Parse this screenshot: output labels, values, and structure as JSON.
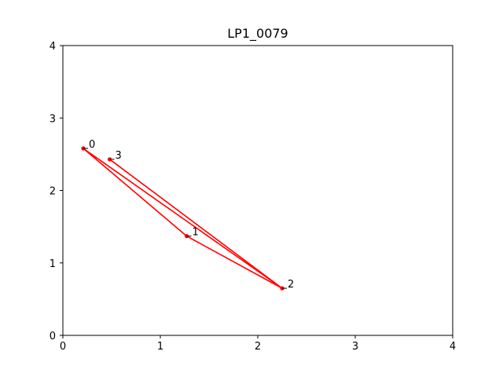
{
  "chart_data": {
    "type": "line",
    "title": "LP1_0079",
    "xlabel": "",
    "ylabel": "",
    "xlim": [
      0,
      4
    ],
    "ylim": [
      0,
      4
    ],
    "xticks": [
      "0",
      "1",
      "2",
      "3",
      "4"
    ],
    "yticks": [
      "0",
      "1",
      "2",
      "3",
      "4"
    ],
    "grid": false,
    "series": [
      {
        "color": "#ff0000",
        "marker": "circle",
        "points": [
          {
            "label": "0",
            "x": 0.21,
            "y": 2.58
          },
          {
            "label": "1",
            "x": 1.27,
            "y": 1.37
          },
          {
            "label": "2",
            "x": 2.25,
            "y": 0.65
          },
          {
            "label": "0",
            "x": 0.21,
            "y": 2.58
          },
          {
            "label": "2",
            "x": 2.25,
            "y": 0.65
          },
          {
            "label": "3",
            "x": 0.48,
            "y": 2.43
          }
        ]
      }
    ],
    "point_labels": [
      {
        "text": "0",
        "x": 0.21,
        "y": 2.58
      },
      {
        "text": "1",
        "x": 1.27,
        "y": 1.37
      },
      {
        "text": "2",
        "x": 2.25,
        "y": 0.65
      },
      {
        "text": "3",
        "x": 0.48,
        "y": 2.43
      }
    ]
  }
}
